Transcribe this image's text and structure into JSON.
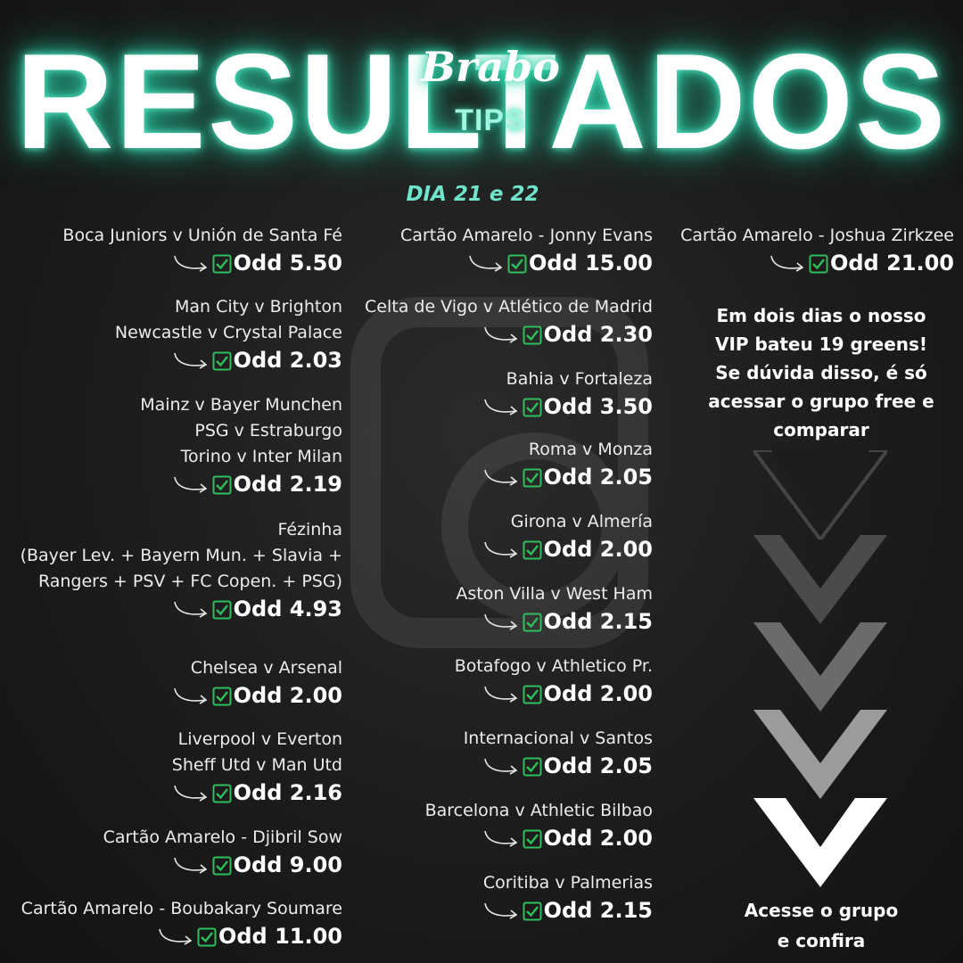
{
  "header": {
    "title": "RESULTADOS",
    "logo_script": "Brabo",
    "logo_tips": "TIPS",
    "dates": "DIA 21 e 22"
  },
  "colors": {
    "accent": "#2ed1a9",
    "check": "#2fbf5a",
    "text": "#ffffff"
  },
  "icons": {
    "arrow": "curved-arrow-icon",
    "check": "green-check-icon",
    "chevron": "chevron-down-icon"
  },
  "column1": [
    {
      "lines": [
        "Boca Juniors v Unión de Santa Fé"
      ],
      "odd": "Odd 5.50"
    },
    {
      "lines": [
        "Man City v Brighton",
        "Newcastle v Crystal Palace"
      ],
      "odd": "Odd 2.03"
    },
    {
      "lines": [
        "Mainz v Bayer Munchen",
        "PSG v Estraburgo",
        "Torino v Inter Milan"
      ],
      "odd": "Odd 2.19"
    },
    {
      "lines": [
        "Fézinha",
        "(Bayer Lev. + Bayern Mun. + Slavia +",
        "Rangers + PSV + FC Copen. + PSG)"
      ],
      "odd": "Odd 4.93"
    },
    {
      "lines": [
        "Chelsea v Arsenal"
      ],
      "odd": "Odd 2.00"
    },
    {
      "lines": [
        "Liverpool v Everton",
        "Sheff Utd v Man Utd"
      ],
      "odd": "Odd 2.16"
    },
    {
      "lines": [
        "Cartão Amarelo - Djibril Sow"
      ],
      "odd": "Odd 9.00"
    },
    {
      "lines": [
        "Cartão Amarelo - Boubakary Soumare"
      ],
      "odd": "Odd 11.00"
    }
  ],
  "column2": [
    {
      "lines": [
        "Cartão Amarelo - Jonny Evans"
      ],
      "odd": "Odd 15.00"
    },
    {
      "lines": [
        "Celta de Vigo v Atlético de Madrid"
      ],
      "odd": "Odd 2.30"
    },
    {
      "lines": [
        "Bahia v Fortaleza"
      ],
      "odd": "Odd 3.50"
    },
    {
      "lines": [
        "Roma v Monza"
      ],
      "odd": "Odd 2.05"
    },
    {
      "lines": [
        "Girona v Almería"
      ],
      "odd": "Odd 2.00"
    },
    {
      "lines": [
        "Aston Villa v West Ham"
      ],
      "odd": "Odd 2.15"
    },
    {
      "lines": [
        "Botafogo v Athletico Pr."
      ],
      "odd": "Odd 2.00"
    },
    {
      "lines": [
        "Internacional v Santos"
      ],
      "odd": "Odd 2.05"
    },
    {
      "lines": [
        "Barcelona v Athletic Bilbao"
      ],
      "odd": "Odd 2.00"
    },
    {
      "lines": [
        "Coritiba v Palmerias"
      ],
      "odd": "Odd 2.15"
    }
  ],
  "column3": [
    {
      "lines": [
        "Cartão Amarelo - Joshua Zirkzee"
      ],
      "odd": "Odd 21.00"
    }
  ],
  "promo": {
    "lines": [
      "Em dois dias o nosso",
      "VIP bateu 19 greens!",
      "Se dúvida disso, é só",
      "acessar o grupo free e",
      "comparar"
    ]
  },
  "cta": {
    "lines": [
      "Acesse o grupo",
      "e confira"
    ]
  }
}
